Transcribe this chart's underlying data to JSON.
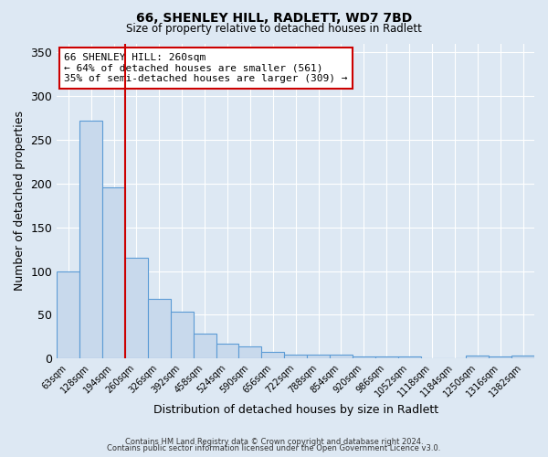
{
  "title": "66, SHENLEY HILL, RADLETT, WD7 7BD",
  "subtitle": "Size of property relative to detached houses in Radlett",
  "xlabel": "Distribution of detached houses by size in Radlett",
  "ylabel": "Number of detached properties",
  "bar_color": "#c8d9ec",
  "bar_edge_color": "#5b9bd5",
  "bin_labels": [
    "63sqm",
    "128sqm",
    "194sqm",
    "260sqm",
    "326sqm",
    "392sqm",
    "458sqm",
    "524sqm",
    "590sqm",
    "656sqm",
    "722sqm",
    "788sqm",
    "854sqm",
    "920sqm",
    "986sqm",
    "1052sqm",
    "1118sqm",
    "1184sqm",
    "1250sqm",
    "1316sqm",
    "1382sqm"
  ],
  "bar_values": [
    100,
    272,
    196,
    115,
    68,
    54,
    29,
    17,
    14,
    8,
    5,
    5,
    5,
    2,
    2,
    2,
    0,
    0,
    3,
    2,
    3
  ],
  "ylim": [
    0,
    360
  ],
  "yticks": [
    0,
    50,
    100,
    150,
    200,
    250,
    300,
    350
  ],
  "vline_index": 3,
  "marker_label_title": "66 SHENLEY HILL: 260sqm",
  "marker_label_line2": "← 64% of detached houses are smaller (561)",
  "marker_label_line3": "35% of semi-detached houses are larger (309) →",
  "annotation_box_color": "#ffffff",
  "annotation_box_edge": "#cc0000",
  "vline_color": "#cc0000",
  "background_color": "#dde8f3",
  "footer_line1": "Contains HM Land Registry data © Crown copyright and database right 2024.",
  "footer_line2": "Contains public sector information licensed under the Open Government Licence v3.0."
}
